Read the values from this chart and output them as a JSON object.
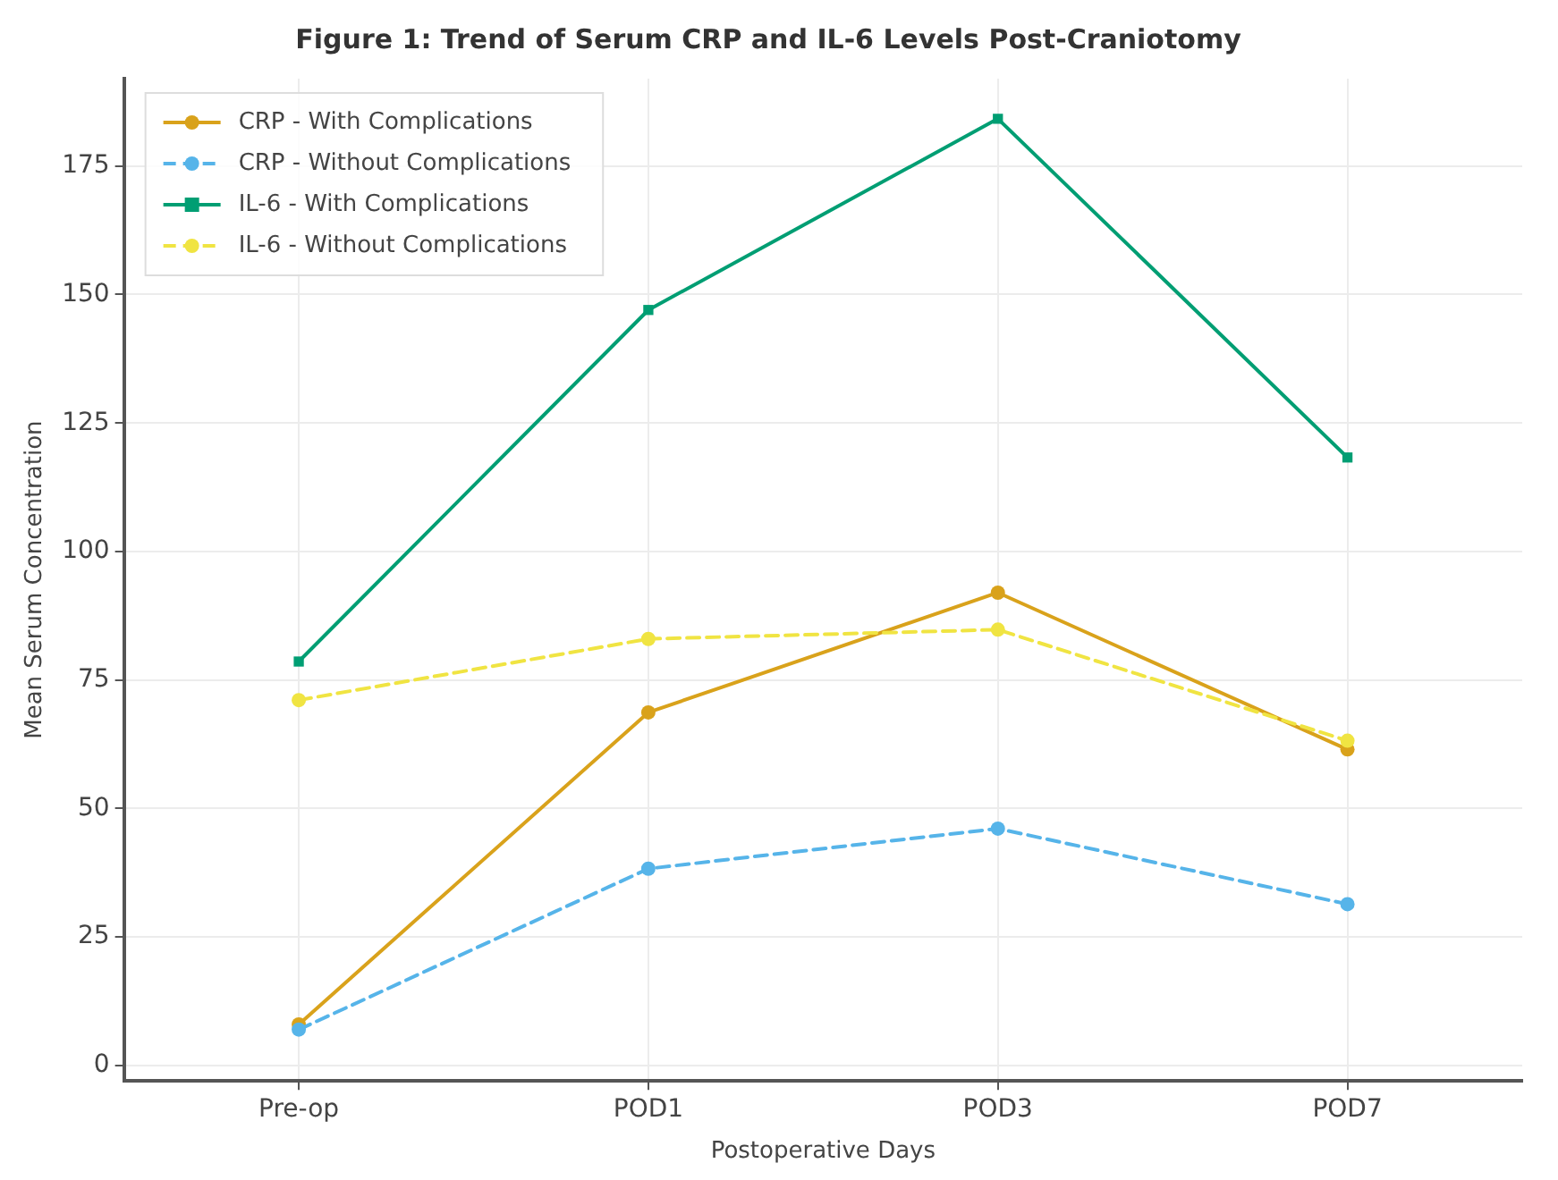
{
  "chart_data": {
    "type": "line",
    "title": "Figure 1: Trend of Serum CRP and IL-6 Levels Post-Craniotomy",
    "xlabel": "Postoperative Days",
    "ylabel": "Mean Serum Concentration",
    "categories": [
      "Pre-op",
      "POD1",
      "POD3",
      "POD7"
    ],
    "series": [
      {
        "name": "CRP - With Complications",
        "color": "#d9a21b",
        "values": [
          8,
          68.7,
          92,
          61.5
        ],
        "marker": "circle",
        "line_style": "solid"
      },
      {
        "name": "CRP - Without Complications",
        "color": "#56b4e9",
        "values": [
          7,
          38.3,
          46.1,
          31.4
        ],
        "marker": "circle",
        "line_style": "dashed"
      },
      {
        "name": "IL-6 - With Complications",
        "color": "#009e73",
        "values": [
          78.6,
          147,
          184.2,
          118.3
        ],
        "marker": "square",
        "line_style": "solid"
      },
      {
        "name": "IL-6 - Without Complications",
        "color": "#f0e442",
        "values": [
          71.1,
          83,
          84.8,
          63.2
        ],
        "marker": "circle",
        "line_style": "dashed"
      }
    ],
    "ylim": [
      -3,
      192
    ],
    "yticks": [
      0,
      25,
      50,
      75,
      100,
      125,
      150,
      175
    ],
    "grid": true,
    "legend": "top left"
  }
}
